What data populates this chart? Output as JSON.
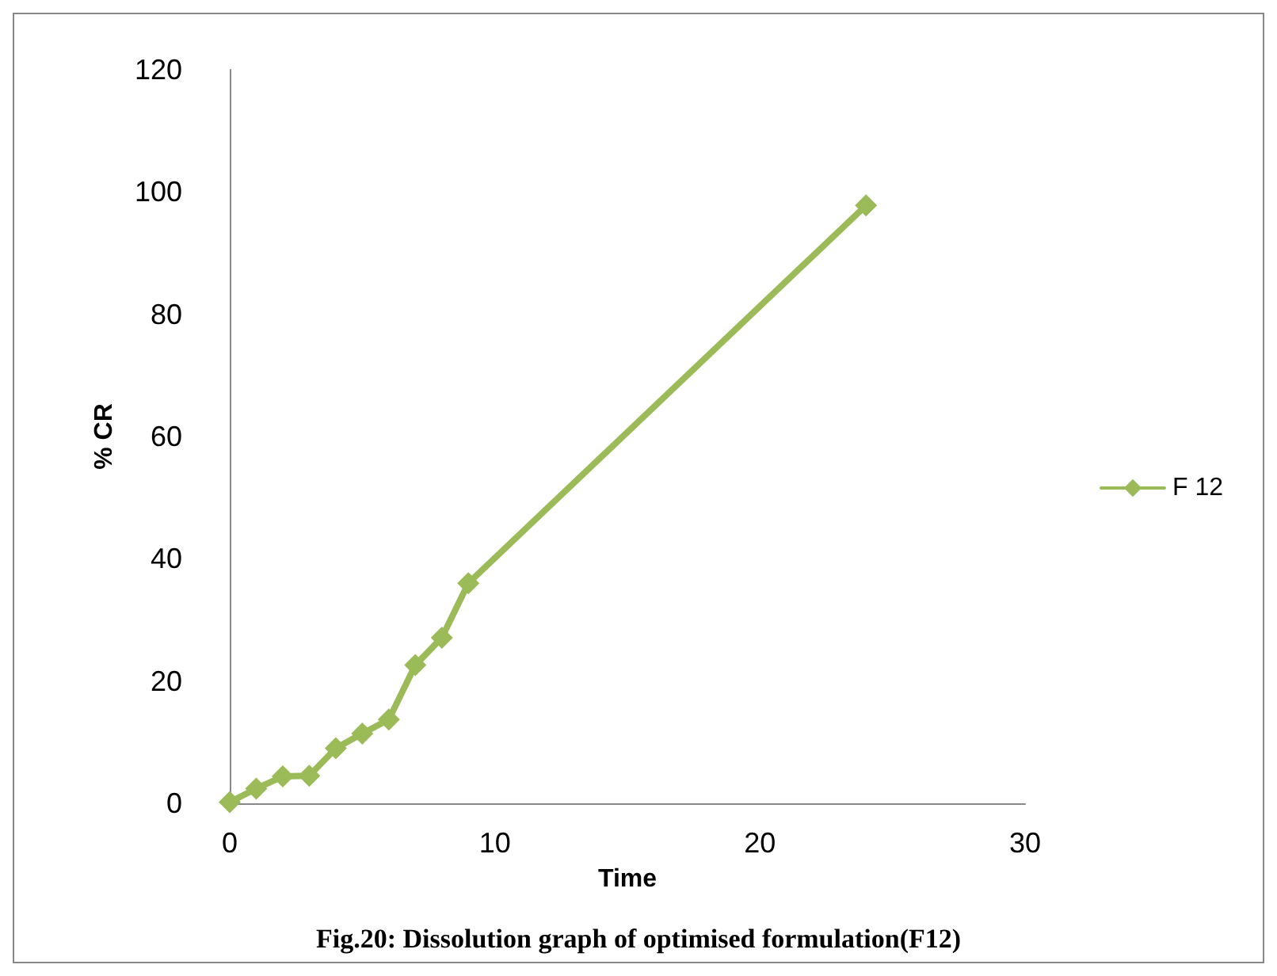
{
  "chart_data": {
    "type": "line",
    "xlabel": "Time",
    "ylabel": "% CR",
    "annotations": [
      "Fig.20: Dissolution graph of optimised formulation(F12)"
    ],
    "x": [
      0,
      1,
      2,
      3,
      4,
      5,
      6,
      7,
      8,
      9,
      24
    ],
    "series": [
      {
        "name": "F 12",
        "color": "#9bbb59",
        "values": [
          0.2,
          2.4,
          4.4,
          4.5,
          9.0,
          11.4,
          13.7,
          22.6,
          27.1,
          36.0,
          97.8
        ]
      }
    ],
    "xlim": [
      0,
      30
    ],
    "xticks": [
      0,
      10,
      20,
      30
    ],
    "ylim": [
      0,
      120
    ],
    "yticks": [
      0,
      20,
      40,
      60,
      80,
      100,
      120
    ],
    "grid": false,
    "legend": "right",
    "marker": "diamond",
    "line_style": "solid"
  }
}
